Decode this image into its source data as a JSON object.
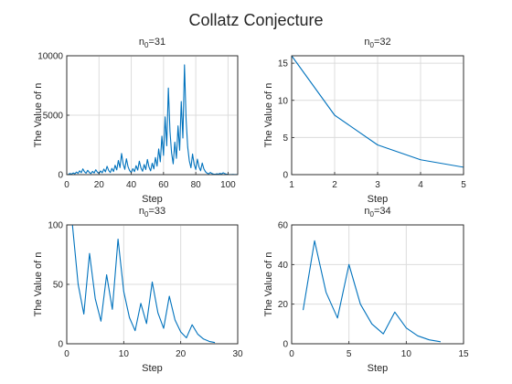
{
  "figure": {
    "suptitle": "Collatz Conjecture",
    "series_color": "#0072bd"
  },
  "chart_data": [
    {
      "type": "line",
      "title_base": "n",
      "title_sub": "0",
      "title_rest": "=31",
      "xlabel": "Step",
      "ylabel": "The Value of n",
      "xlim": [
        0,
        106
      ],
      "ylim": [
        0,
        10000
      ],
      "xticks": [
        0,
        20,
        40,
        60,
        80,
        100
      ],
      "yticks": [
        0,
        5000,
        10000
      ],
      "grid": true,
      "x": [
        1,
        2,
        3,
        4,
        5,
        6,
        7,
        8,
        9,
        10,
        11,
        12,
        13,
        14,
        15,
        16,
        17,
        18,
        19,
        20,
        21,
        22,
        23,
        24,
        25,
        26,
        27,
        28,
        29,
        30,
        31,
        32,
        33,
        34,
        35,
        36,
        37,
        38,
        39,
        40,
        41,
        42,
        43,
        44,
        45,
        46,
        47,
        48,
        49,
        50,
        51,
        52,
        53,
        54,
        55,
        56,
        57,
        58,
        59,
        60,
        61,
        62,
        63,
        64,
        65,
        66,
        67,
        68,
        69,
        70,
        71,
        72,
        73,
        74,
        75,
        76,
        77,
        78,
        79,
        80,
        81,
        82,
        83,
        84,
        85,
        86,
        87,
        88,
        89,
        90,
        91,
        92,
        93,
        94,
        95,
        96,
        97,
        98,
        99,
        100,
        101,
        102,
        103,
        104,
        105,
        106,
        107
      ],
      "values": [
        31,
        94,
        47,
        142,
        71,
        214,
        107,
        322,
        161,
        484,
        242,
        121,
        364,
        182,
        91,
        274,
        137,
        412,
        206,
        103,
        310,
        155,
        466,
        233,
        700,
        350,
        175,
        526,
        263,
        790,
        395,
        1186,
        593,
        1780,
        890,
        445,
        1336,
        668,
        334,
        167,
        502,
        251,
        754,
        377,
        1132,
        566,
        283,
        850,
        425,
        1276,
        638,
        319,
        958,
        479,
        1438,
        719,
        2158,
        1079,
        3238,
        1619,
        4858,
        2429,
        7288,
        3644,
        1822,
        911,
        2734,
        1367,
        4102,
        2051,
        6154,
        3077,
        9232,
        4616,
        2308,
        1154,
        577,
        1732,
        866,
        433,
        1300,
        650,
        325,
        976,
        488,
        244,
        122,
        61,
        184,
        92,
        46,
        23,
        70,
        35,
        106,
        53,
        160,
        80,
        40,
        20,
        10,
        5,
        16,
        8,
        4,
        2,
        1
      ]
    },
    {
      "type": "line",
      "title_base": "n",
      "title_sub": "0",
      "title_rest": "=32",
      "xlabel": "Step",
      "ylabel": "The Value of n",
      "xlim": [
        1,
        5
      ],
      "ylim": [
        0,
        16
      ],
      "xticks": [
        1,
        2,
        3,
        4,
        5
      ],
      "yticks": [
        0,
        5,
        10,
        15
      ],
      "grid": true,
      "x": [
        1,
        2,
        3,
        4,
        5
      ],
      "values": [
        16,
        8,
        4,
        2,
        1
      ]
    },
    {
      "type": "line",
      "title_base": "n",
      "title_sub": "0",
      "title_rest": "=33",
      "xlabel": "Step",
      "ylabel": "The Value of n",
      "xlim": [
        0,
        30
      ],
      "ylim": [
        0,
        100
      ],
      "xticks": [
        0,
        10,
        20,
        30
      ],
      "yticks": [
        0,
        50,
        100
      ],
      "grid": true,
      "x": [
        1,
        2,
        3,
        4,
        5,
        6,
        7,
        8,
        9,
        10,
        11,
        12,
        13,
        14,
        15,
        16,
        17,
        18,
        19,
        20,
        21,
        22,
        23,
        24,
        25,
        26
      ],
      "values": [
        100,
        50,
        25,
        76,
        38,
        19,
        58,
        29,
        88,
        44,
        22,
        11,
        34,
        17,
        52,
        26,
        13,
        40,
        20,
        10,
        5,
        16,
        8,
        4,
        2,
        1
      ]
    },
    {
      "type": "line",
      "title_base": "n",
      "title_sub": "0",
      "title_rest": "=34",
      "xlabel": "Step",
      "ylabel": "The Value of n",
      "xlim": [
        0,
        15
      ],
      "ylim": [
        0,
        60
      ],
      "xticks": [
        0,
        5,
        10,
        15
      ],
      "yticks": [
        0,
        20,
        40,
        60
      ],
      "grid": true,
      "x": [
        1,
        2,
        3,
        4,
        5,
        6,
        7,
        8,
        9,
        10,
        11,
        12,
        13
      ],
      "values": [
        17,
        52,
        26,
        13,
        40,
        20,
        10,
        5,
        16,
        8,
        4,
        2,
        1
      ]
    }
  ]
}
